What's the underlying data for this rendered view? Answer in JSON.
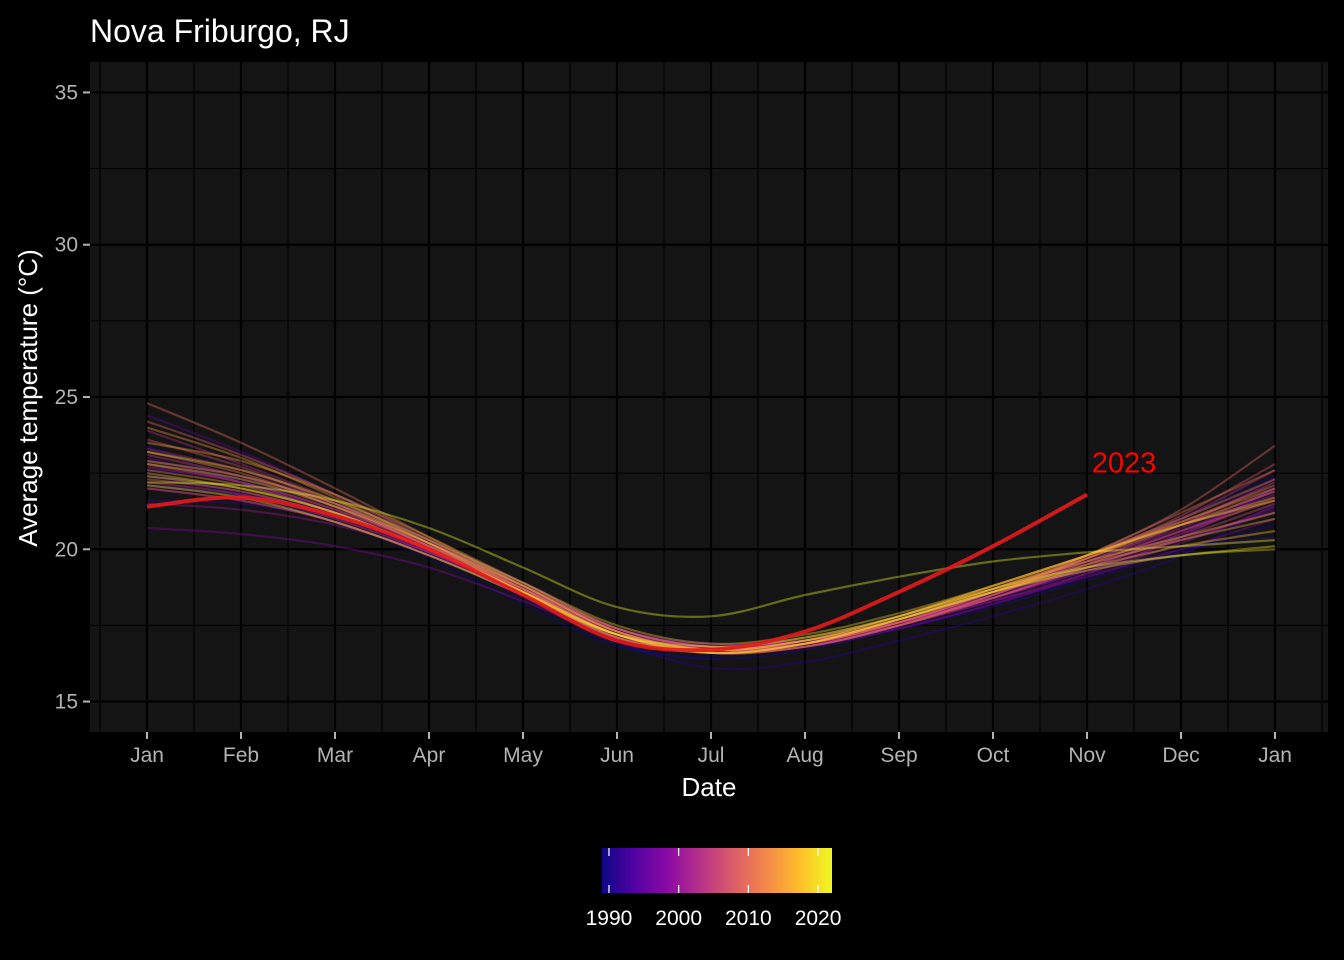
{
  "chart_data": {
    "type": "line",
    "title": "Nova Friburgo, RJ",
    "xlabel": "Date",
    "ylabel": "Average temperature (°C)",
    "x_tick_labels": [
      "Jan",
      "Feb",
      "Mar",
      "Apr",
      "May",
      "Jun",
      "Jul",
      "Aug",
      "Sep",
      "Oct",
      "Nov",
      "Dec",
      "Jan"
    ],
    "y_ticks": [
      15,
      20,
      25,
      30,
      35
    ],
    "ylim": [
      14,
      36
    ],
    "grid": true,
    "background": "#141414",
    "legend": {
      "type": "colorbar",
      "placement": "bottom",
      "ticks": [
        1990,
        2000,
        2010,
        2020
      ],
      "range": [
        1989,
        2022
      ],
      "palette": [
        "#0d0887",
        "#5302a3",
        "#8b0aa5",
        "#b83289",
        "#db5c68",
        "#f48849",
        "#febd2a",
        "#f0f921"
      ]
    },
    "highlight": {
      "label": "2023",
      "color": "#e31a1c",
      "label_color": "#ff0000",
      "x_month": [
        0,
        1,
        2,
        3,
        4,
        5,
        6,
        7,
        8,
        9,
        10
      ],
      "values": [
        21.4,
        21.7,
        21.1,
        20.0,
        18.5,
        17.0,
        16.7,
        17.3,
        18.6,
        20.1,
        21.8
      ]
    },
    "series": [
      {
        "year": 1989,
        "values": [
          22.5,
          21.8,
          20.9,
          19.7,
          18.2,
          16.8,
          16.5,
          17.0,
          17.8,
          18.6,
          19.8,
          21.0,
          22.4
        ]
      },
      {
        "year": 1990,
        "values": [
          23.4,
          22.2,
          21.2,
          19.9,
          18.4,
          16.9,
          16.4,
          16.7,
          17.4,
          18.1,
          19.0,
          19.9,
          20.8
        ]
      },
      {
        "year": 1991,
        "values": [
          22.6,
          22.3,
          21.4,
          20.2,
          18.8,
          17.0,
          16.1,
          16.3,
          17.0,
          17.8,
          18.7,
          19.8,
          21.5
        ]
      },
      {
        "year": 1992,
        "values": [
          21.6,
          21.5,
          21.0,
          19.9,
          18.5,
          17.1,
          16.6,
          16.9,
          17.4,
          18.2,
          19.1,
          20.0,
          20.4
        ]
      },
      {
        "year": 1993,
        "values": [
          22.9,
          22.4,
          21.5,
          20.3,
          18.9,
          17.4,
          16.9,
          17.0,
          17.6,
          18.5,
          19.4,
          20.5,
          22.0
        ]
      },
      {
        "year": 1994,
        "values": [
          22.1,
          21.8,
          21.2,
          20.2,
          18.9,
          17.4,
          16.7,
          16.8,
          17.5,
          18.4,
          19.4,
          20.6,
          21.9
        ]
      },
      {
        "year": 1995,
        "values": [
          24.4,
          23.2,
          21.8,
          20.3,
          18.6,
          17.1,
          16.7,
          17.0,
          17.7,
          18.6,
          19.6,
          20.8,
          22.3
        ]
      },
      {
        "year": 1996,
        "values": [
          23.0,
          22.2,
          21.2,
          19.9,
          18.5,
          17.2,
          16.8,
          17.0,
          17.6,
          18.4,
          19.3,
          20.3,
          21.3
        ]
      },
      {
        "year": 1997,
        "values": [
          22.4,
          21.9,
          21.1,
          20.0,
          18.7,
          17.3,
          16.9,
          17.0,
          17.6,
          18.3,
          19.1,
          20.0,
          21.0
        ]
      },
      {
        "year": 1998,
        "values": [
          20.7,
          20.5,
          20.1,
          19.4,
          18.3,
          17.1,
          16.6,
          16.8,
          17.4,
          18.2,
          19.2,
          20.4,
          22.0
        ]
      },
      {
        "year": 1999,
        "values": [
          22.0,
          21.6,
          20.9,
          19.8,
          18.6,
          17.3,
          16.8,
          17.0,
          17.6,
          18.4,
          19.3,
          20.3,
          21.2
        ]
      },
      {
        "year": 2000,
        "values": [
          21.5,
          21.3,
          20.8,
          19.9,
          18.7,
          17.4,
          16.8,
          16.9,
          17.5,
          18.3,
          19.2,
          20.2,
          21.4
        ]
      },
      {
        "year": 2001,
        "values": [
          22.7,
          22.2,
          21.3,
          20.1,
          18.7,
          17.3,
          16.7,
          16.9,
          17.6,
          18.5,
          19.5,
          20.6,
          21.8
        ]
      },
      {
        "year": 2002,
        "values": [
          23.3,
          22.6,
          21.5,
          20.2,
          18.8,
          17.4,
          16.8,
          17.0,
          17.7,
          18.6,
          19.6,
          20.7,
          22.0
        ]
      },
      {
        "year": 2003,
        "values": [
          23.9,
          22.8,
          21.6,
          20.2,
          18.7,
          17.2,
          16.6,
          16.9,
          17.6,
          18.6,
          19.7,
          21.0,
          22.6
        ]
      },
      {
        "year": 2004,
        "values": [
          22.2,
          21.8,
          21.0,
          19.9,
          18.6,
          17.2,
          16.7,
          16.9,
          17.5,
          18.4,
          19.4,
          20.5,
          21.7
        ]
      },
      {
        "year": 2005,
        "values": [
          23.1,
          22.4,
          21.4,
          20.1,
          18.7,
          17.3,
          16.7,
          16.9,
          17.6,
          18.5,
          19.6,
          20.8,
          22.2
        ]
      },
      {
        "year": 2006,
        "values": [
          22.8,
          22.2,
          21.3,
          20.1,
          18.8,
          17.4,
          16.8,
          17.0,
          17.6,
          18.4,
          19.4,
          20.4,
          21.5
        ]
      },
      {
        "year": 2007,
        "values": [
          23.6,
          22.7,
          21.5,
          20.1,
          18.7,
          17.2,
          16.6,
          16.8,
          17.5,
          18.5,
          19.7,
          21.1,
          22.8
        ]
      },
      {
        "year": 2008,
        "values": [
          22.0,
          21.6,
          20.9,
          19.8,
          18.5,
          17.1,
          16.6,
          16.8,
          17.5,
          18.4,
          19.5,
          20.6,
          21.6
        ]
      },
      {
        "year": 2009,
        "values": [
          24.2,
          23.1,
          21.8,
          20.3,
          18.8,
          17.3,
          16.7,
          16.9,
          17.6,
          18.6,
          19.8,
          21.3,
          23.4
        ]
      },
      {
        "year": 2010,
        "values": [
          24.8,
          23.5,
          22.0,
          20.4,
          18.8,
          17.3,
          16.6,
          16.8,
          17.5,
          18.5,
          19.8,
          21.2,
          22.6
        ]
      },
      {
        "year": 2011,
        "values": [
          22.3,
          21.9,
          21.1,
          20.0,
          18.6,
          17.2,
          16.7,
          16.9,
          17.6,
          18.6,
          19.7,
          20.9,
          22.1
        ]
      },
      {
        "year": 2012,
        "values": [
          23.2,
          22.5,
          21.4,
          20.1,
          18.6,
          17.1,
          16.6,
          16.9,
          17.7,
          18.7,
          19.8,
          21.0,
          22.3
        ]
      },
      {
        "year": 2013,
        "values": [
          22.6,
          22.1,
          21.2,
          20.0,
          18.6,
          17.2,
          16.7,
          17.0,
          17.8,
          18.8,
          19.8,
          20.9,
          22.0
        ]
      },
      {
        "year": 2014,
        "values": [
          24.0,
          23.0,
          21.7,
          20.2,
          18.6,
          17.1,
          16.6,
          16.9,
          17.7,
          18.7,
          19.7,
          20.8,
          21.9
        ]
      },
      {
        "year": 2015,
        "values": [
          23.5,
          22.9,
          21.8,
          20.4,
          18.9,
          17.4,
          16.8,
          17.1,
          17.8,
          18.8,
          19.8,
          20.8,
          21.7
        ]
      },
      {
        "year": 2016,
        "values": [
          22.9,
          22.4,
          21.5,
          20.2,
          18.7,
          17.2,
          16.6,
          16.9,
          17.7,
          18.6,
          19.5,
          20.3,
          21.0
        ]
      },
      {
        "year": 2017,
        "values": [
          22.5,
          22.0,
          21.2,
          20.0,
          18.6,
          17.2,
          16.7,
          17.0,
          17.8,
          18.7,
          19.6,
          20.4,
          21.2
        ]
      },
      {
        "year": 2018,
        "values": [
          22.8,
          22.3,
          21.4,
          20.2,
          18.8,
          17.3,
          16.7,
          17.0,
          17.7,
          18.6,
          19.4,
          20.1,
          20.6
        ]
      },
      {
        "year": 2019,
        "values": [
          23.2,
          22.6,
          21.6,
          20.3,
          18.9,
          17.5,
          16.9,
          17.2,
          17.9,
          18.8,
          19.8,
          20.8,
          21.6
        ]
      },
      {
        "year": 2020,
        "values": [
          22.4,
          22.0,
          21.2,
          20.0,
          18.6,
          17.2,
          16.6,
          16.9,
          17.7,
          18.6,
          19.3,
          19.8,
          20.0
        ]
      },
      {
        "year": 2021,
        "values": [
          22.1,
          21.7,
          20.9,
          19.8,
          18.5,
          17.2,
          16.8,
          17.1,
          17.8,
          18.7,
          19.4,
          19.8,
          20.1
        ]
      },
      {
        "year": 2022,
        "values": [
          22.2,
          22.1,
          21.6,
          20.7,
          19.4,
          18.1,
          17.8,
          18.5,
          19.1,
          19.6,
          19.9,
          20.1,
          20.3
        ]
      }
    ]
  }
}
